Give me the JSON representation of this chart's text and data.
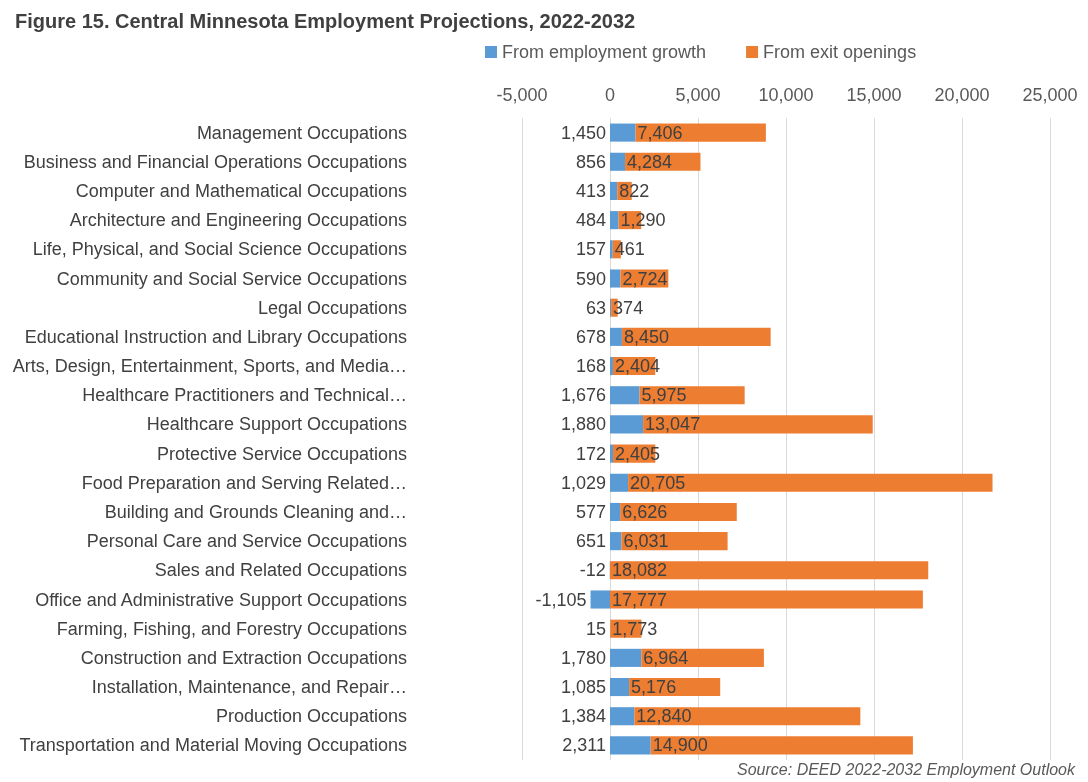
{
  "chart_data": {
    "type": "bar",
    "orientation": "horizontal",
    "stacked": true,
    "title": "Figure 15. Central Minnesota Employment Projections, 2022-2032",
    "categories": [
      "Management Occupations",
      "Business and Financial Operations Occupations",
      "Computer and Mathematical Occupations",
      "Architecture and Engineering Occupations",
      "Life, Physical, and Social Science Occupations",
      "Community and Social Service Occupations",
      "Legal Occupations",
      "Educational Instruction and Library Occupations",
      "Arts, Design, Entertainment, Sports, and Media…",
      "Healthcare Practitioners and Technical…",
      "Healthcare Support Occupations",
      "Protective Service Occupations",
      "Food Preparation and Serving Related…",
      "Building and Grounds Cleaning and…",
      "Personal Care and Service Occupations",
      "Sales and Related Occupations",
      "Office and Administrative Support Occupations",
      "Farming, Fishing, and Forestry Occupations",
      "Construction and Extraction Occupations",
      "Installation, Maintenance, and Repair…",
      "Production Occupations",
      "Transportation and Material Moving Occupations"
    ],
    "series": [
      {
        "name": "From employment growth",
        "color": "#5b9bd5",
        "values": [
          1450,
          856,
          413,
          484,
          157,
          590,
          63,
          678,
          168,
          1676,
          1880,
          172,
          1029,
          577,
          651,
          -12,
          -1105,
          15,
          1780,
          1085,
          1384,
          2311
        ],
        "value_labels": [
          "1,450",
          "856",
          "413",
          "484",
          "157",
          "590",
          "63",
          "678",
          "168",
          "1,676",
          "1,880",
          "172",
          "1,029",
          "577",
          "651",
          "-12",
          "-1,105",
          "15",
          "1,780",
          "1,085",
          "1,384",
          "2,311"
        ]
      },
      {
        "name": "From exit openings",
        "color": "#ed7d31",
        "values": [
          7406,
          4284,
          822,
          1290,
          461,
          2724,
          374,
          8450,
          2404,
          5975,
          13047,
          2405,
          20705,
          6626,
          6031,
          18082,
          17777,
          1773,
          6964,
          5176,
          12840,
          14900
        ],
        "value_labels": [
          "7,406",
          "4,284",
          "822",
          "1,290",
          "461",
          "2,724",
          "374",
          "8,450",
          "2,404",
          "5,975",
          "13,047",
          "2,405",
          "20,705",
          "6,626",
          "6,031",
          "18,082",
          "17,777",
          "1,773",
          "6,964",
          "5,176",
          "12,840",
          "14,900"
        ]
      }
    ],
    "xlim": [
      -5000,
      25000
    ],
    "xticks": [
      {
        "value": -5000,
        "label": "-5,000"
      },
      0,
      {
        "value": 5000,
        "label": "5,000"
      },
      {
        "value": 10000,
        "label": "10,000"
      },
      {
        "value": 15000,
        "label": "15,000"
      },
      {
        "value": 20000,
        "label": "20,000"
      },
      {
        "value": 25000,
        "label": "25,000"
      }
    ],
    "grid": "x",
    "legend": "top",
    "annotations": [
      "Source: DEED 2022-2032 Employment Outlook"
    ]
  }
}
